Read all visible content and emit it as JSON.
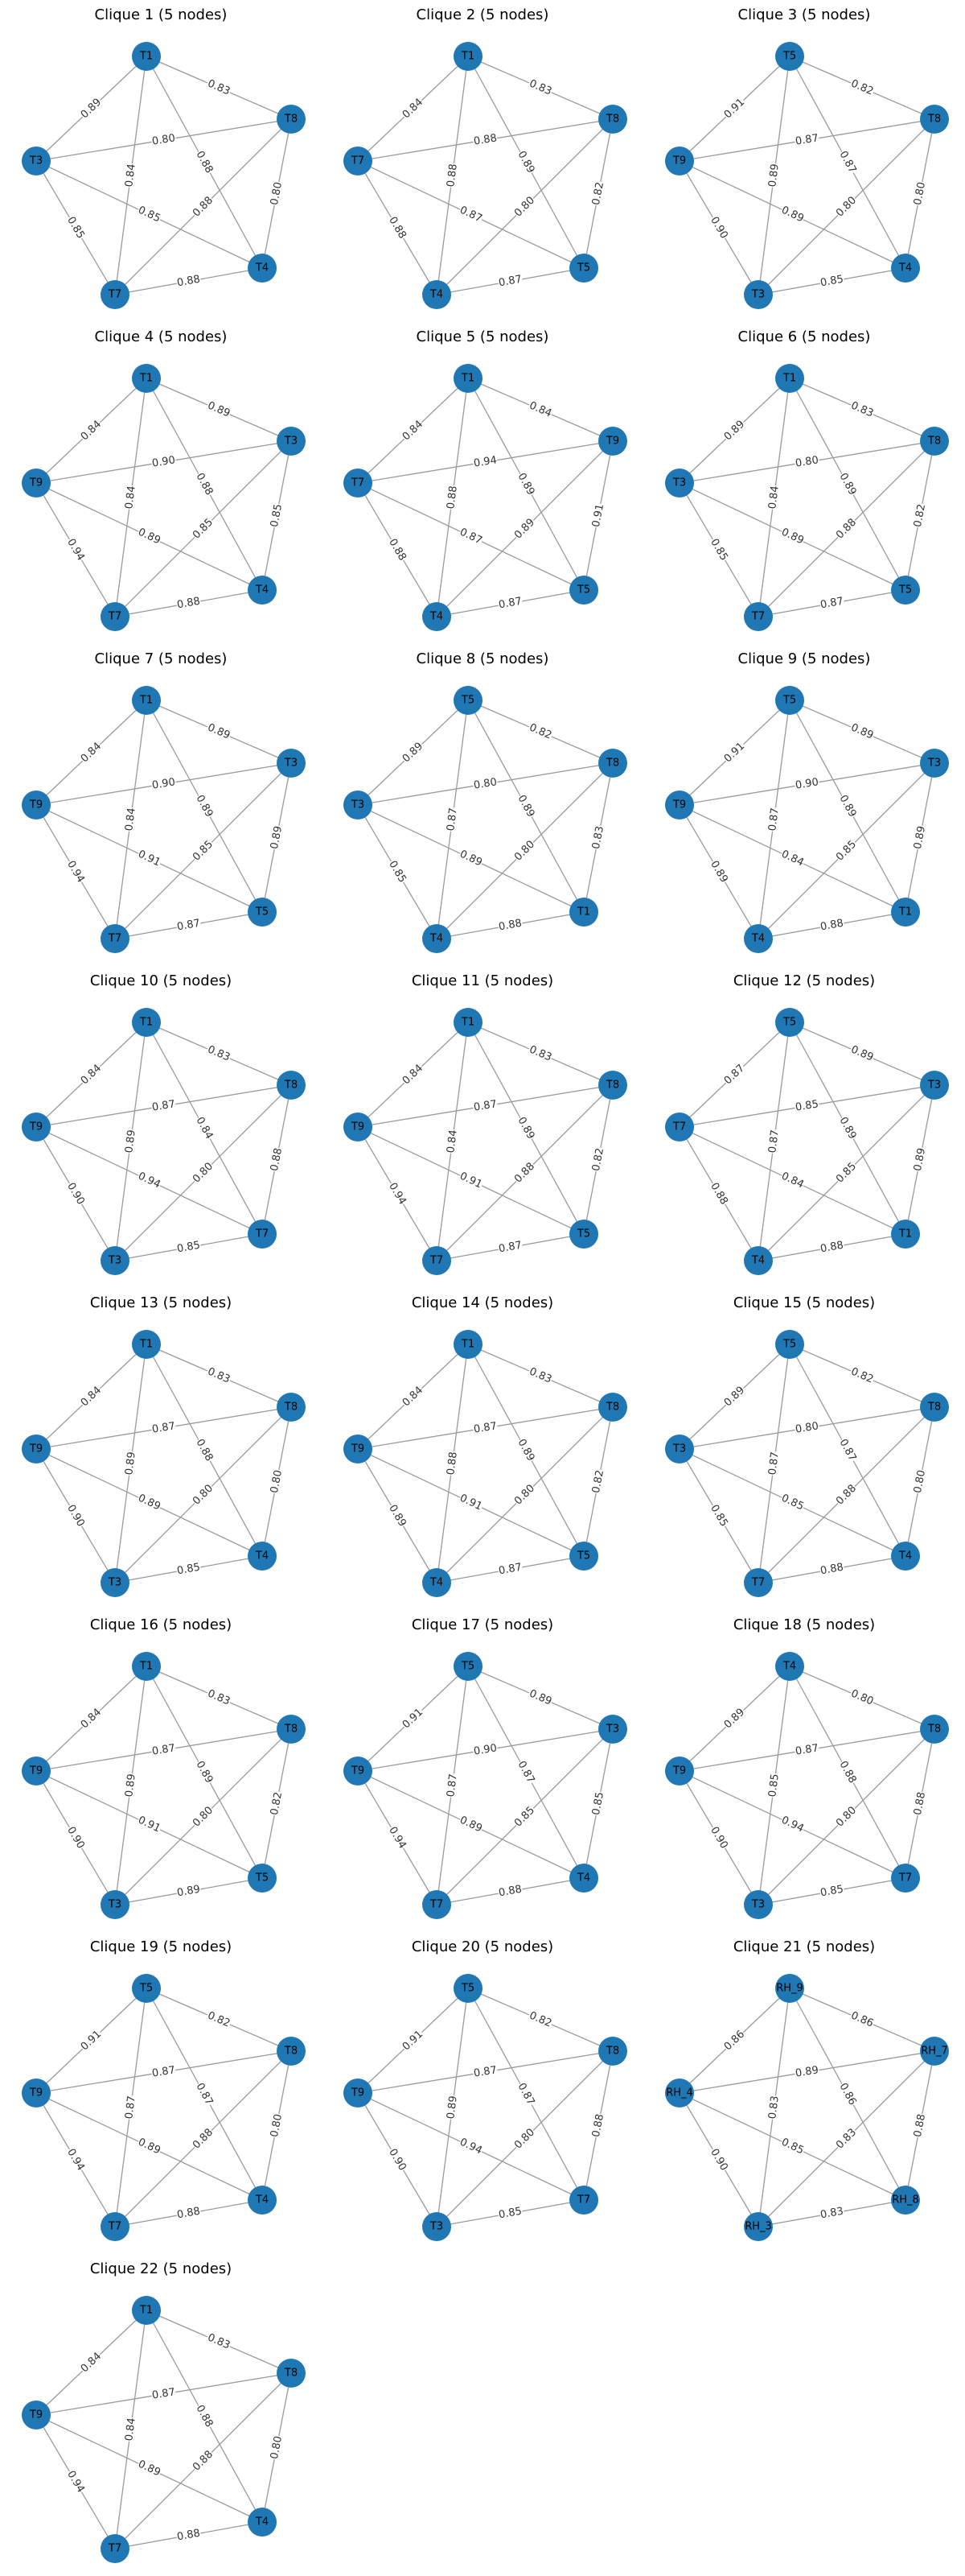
{
  "cliques": [
    {
      "title": "Clique 1 (5 nodes)",
      "nodes": [
        "T1",
        "T8",
        "T4",
        "T7",
        "T3"
      ],
      "edges": [
        [
          "T1",
          "T8",
          "0.83"
        ],
        [
          "T1",
          "T4",
          "0.88"
        ],
        [
          "T1",
          "T7",
          "0.84"
        ],
        [
          "T1",
          "T3",
          "0.89"
        ],
        [
          "T8",
          "T4",
          "0.80"
        ],
        [
          "T8",
          "T7",
          "0.88"
        ],
        [
          "T8",
          "T3",
          "0.80"
        ],
        [
          "T4",
          "T7",
          "0.88"
        ],
        [
          "T4",
          "T3",
          "0.85"
        ],
        [
          "T7",
          "T3",
          "0.85"
        ]
      ]
    },
    {
      "title": "Clique 2 (5 nodes)",
      "nodes": [
        "T1",
        "T8",
        "T5",
        "T4",
        "T7"
      ],
      "edges": [
        [
          "T1",
          "T8",
          "0.83"
        ],
        [
          "T1",
          "T5",
          "0.89"
        ],
        [
          "T1",
          "T4",
          "0.88"
        ],
        [
          "T1",
          "T7",
          "0.84"
        ],
        [
          "T8",
          "T5",
          "0.82"
        ],
        [
          "T8",
          "T4",
          "0.80"
        ],
        [
          "T8",
          "T7",
          "0.88"
        ],
        [
          "T5",
          "T4",
          "0.87"
        ],
        [
          "T5",
          "T7",
          "0.87"
        ],
        [
          "T4",
          "T7",
          "0.88"
        ]
      ]
    },
    {
      "title": "Clique 3 (5 nodes)",
      "nodes": [
        "T5",
        "T8",
        "T4",
        "T3",
        "T9"
      ],
      "edges": [
        [
          "T5",
          "T8",
          "0.82"
        ],
        [
          "T5",
          "T4",
          "0.87"
        ],
        [
          "T5",
          "T3",
          "0.89"
        ],
        [
          "T5",
          "T9",
          "0.91"
        ],
        [
          "T8",
          "T4",
          "0.80"
        ],
        [
          "T8",
          "T3",
          "0.80"
        ],
        [
          "T8",
          "T9",
          "0.87"
        ],
        [
          "T4",
          "T3",
          "0.85"
        ],
        [
          "T4",
          "T9",
          "0.89"
        ],
        [
          "T3",
          "T9",
          "0.90"
        ]
      ]
    },
    {
      "title": "Clique 4 (5 nodes)",
      "nodes": [
        "T1",
        "T3",
        "T4",
        "T7",
        "T9"
      ],
      "edges": [
        [
          "T1",
          "T3",
          "0.89"
        ],
        [
          "T1",
          "T4",
          "0.88"
        ],
        [
          "T1",
          "T7",
          "0.84"
        ],
        [
          "T1",
          "T9",
          "0.84"
        ],
        [
          "T3",
          "T4",
          "0.85"
        ],
        [
          "T3",
          "T7",
          "0.85"
        ],
        [
          "T3",
          "T9",
          "0.90"
        ],
        [
          "T4",
          "T7",
          "0.88"
        ],
        [
          "T4",
          "T9",
          "0.89"
        ],
        [
          "T7",
          "T9",
          "0.94"
        ]
      ]
    },
    {
      "title": "Clique 5 (5 nodes)",
      "nodes": [
        "T1",
        "T9",
        "T5",
        "T4",
        "T7"
      ],
      "edges": [
        [
          "T1",
          "T9",
          "0.84"
        ],
        [
          "T1",
          "T5",
          "0.89"
        ],
        [
          "T1",
          "T4",
          "0.88"
        ],
        [
          "T1",
          "T7",
          "0.84"
        ],
        [
          "T9",
          "T5",
          "0.91"
        ],
        [
          "T9",
          "T4",
          "0.89"
        ],
        [
          "T9",
          "T7",
          "0.94"
        ],
        [
          "T5",
          "T4",
          "0.87"
        ],
        [
          "T5",
          "T7",
          "0.87"
        ],
        [
          "T4",
          "T7",
          "0.88"
        ]
      ]
    },
    {
      "title": "Clique 6 (5 nodes)",
      "nodes": [
        "T1",
        "T8",
        "T5",
        "T7",
        "T3"
      ],
      "edges": [
        [
          "T1",
          "T8",
          "0.83"
        ],
        [
          "T1",
          "T5",
          "0.89"
        ],
        [
          "T1",
          "T7",
          "0.84"
        ],
        [
          "T1",
          "T3",
          "0.89"
        ],
        [
          "T8",
          "T5",
          "0.82"
        ],
        [
          "T8",
          "T7",
          "0.88"
        ],
        [
          "T8",
          "T3",
          "0.80"
        ],
        [
          "T5",
          "T7",
          "0.87"
        ],
        [
          "T5",
          "T3",
          "0.89"
        ],
        [
          "T7",
          "T3",
          "0.85"
        ]
      ]
    },
    {
      "title": "Clique 7 (5 nodes)",
      "nodes": [
        "T1",
        "T3",
        "T5",
        "T7",
        "T9"
      ],
      "edges": [
        [
          "T1",
          "T3",
          "0.89"
        ],
        [
          "T1",
          "T5",
          "0.89"
        ],
        [
          "T1",
          "T7",
          "0.84"
        ],
        [
          "T1",
          "T9",
          "0.84"
        ],
        [
          "T3",
          "T5",
          "0.89"
        ],
        [
          "T3",
          "T7",
          "0.85"
        ],
        [
          "T3",
          "T9",
          "0.90"
        ],
        [
          "T5",
          "T7",
          "0.87"
        ],
        [
          "T5",
          "T9",
          "0.91"
        ],
        [
          "T7",
          "T9",
          "0.94"
        ]
      ]
    },
    {
      "title": "Clique 8 (5 nodes)",
      "nodes": [
        "T5",
        "T8",
        "T1",
        "T4",
        "T3"
      ],
      "edges": [
        [
          "T5",
          "T8",
          "0.82"
        ],
        [
          "T5",
          "T1",
          "0.89"
        ],
        [
          "T5",
          "T4",
          "0.87"
        ],
        [
          "T5",
          "T3",
          "0.89"
        ],
        [
          "T8",
          "T1",
          "0.83"
        ],
        [
          "T8",
          "T4",
          "0.80"
        ],
        [
          "T8",
          "T3",
          "0.80"
        ],
        [
          "T1",
          "T4",
          "0.88"
        ],
        [
          "T1",
          "T3",
          "0.89"
        ],
        [
          "T4",
          "T3",
          "0.85"
        ]
      ]
    },
    {
      "title": "Clique 9 (5 nodes)",
      "nodes": [
        "T5",
        "T3",
        "T1",
        "T4",
        "T9"
      ],
      "edges": [
        [
          "T5",
          "T3",
          "0.89"
        ],
        [
          "T5",
          "T1",
          "0.89"
        ],
        [
          "T5",
          "T4",
          "0.87"
        ],
        [
          "T5",
          "T9",
          "0.91"
        ],
        [
          "T3",
          "T1",
          "0.89"
        ],
        [
          "T3",
          "T4",
          "0.85"
        ],
        [
          "T3",
          "T9",
          "0.90"
        ],
        [
          "T1",
          "T4",
          "0.88"
        ],
        [
          "T1",
          "T9",
          "0.84"
        ],
        [
          "T4",
          "T9",
          "0.89"
        ]
      ]
    },
    {
      "title": "Clique 10 (5 nodes)",
      "nodes": [
        "T1",
        "T8",
        "T7",
        "T3",
        "T9"
      ],
      "edges": [
        [
          "T1",
          "T8",
          "0.83"
        ],
        [
          "T1",
          "T7",
          "0.84"
        ],
        [
          "T1",
          "T3",
          "0.89"
        ],
        [
          "T1",
          "T9",
          "0.84"
        ],
        [
          "T8",
          "T7",
          "0.88"
        ],
        [
          "T8",
          "T3",
          "0.80"
        ],
        [
          "T8",
          "T9",
          "0.87"
        ],
        [
          "T7",
          "T3",
          "0.85"
        ],
        [
          "T7",
          "T9",
          "0.94"
        ],
        [
          "T3",
          "T9",
          "0.90"
        ]
      ]
    },
    {
      "title": "Clique 11 (5 nodes)",
      "nodes": [
        "T1",
        "T8",
        "T5",
        "T7",
        "T9"
      ],
      "edges": [
        [
          "T1",
          "T8",
          "0.83"
        ],
        [
          "T1",
          "T5",
          "0.89"
        ],
        [
          "T1",
          "T7",
          "0.84"
        ],
        [
          "T1",
          "T9",
          "0.84"
        ],
        [
          "T8",
          "T5",
          "0.82"
        ],
        [
          "T8",
          "T7",
          "0.88"
        ],
        [
          "T8",
          "T9",
          "0.87"
        ],
        [
          "T5",
          "T7",
          "0.87"
        ],
        [
          "T5",
          "T9",
          "0.91"
        ],
        [
          "T7",
          "T9",
          "0.94"
        ]
      ]
    },
    {
      "title": "Clique 12 (5 nodes)",
      "nodes": [
        "T5",
        "T3",
        "T1",
        "T4",
        "T7"
      ],
      "edges": [
        [
          "T5",
          "T3",
          "0.89"
        ],
        [
          "T5",
          "T1",
          "0.89"
        ],
        [
          "T5",
          "T4",
          "0.87"
        ],
        [
          "T5",
          "T7",
          "0.87"
        ],
        [
          "T3",
          "T1",
          "0.89"
        ],
        [
          "T3",
          "T4",
          "0.85"
        ],
        [
          "T3",
          "T7",
          "0.85"
        ],
        [
          "T1",
          "T4",
          "0.88"
        ],
        [
          "T1",
          "T7",
          "0.84"
        ],
        [
          "T4",
          "T7",
          "0.88"
        ]
      ]
    },
    {
      "title": "Clique 13 (5 nodes)",
      "nodes": [
        "T1",
        "T8",
        "T4",
        "T3",
        "T9"
      ],
      "edges": [
        [
          "T1",
          "T8",
          "0.83"
        ],
        [
          "T1",
          "T4",
          "0.88"
        ],
        [
          "T1",
          "T3",
          "0.89"
        ],
        [
          "T1",
          "T9",
          "0.84"
        ],
        [
          "T8",
          "T4",
          "0.80"
        ],
        [
          "T8",
          "T3",
          "0.80"
        ],
        [
          "T8",
          "T9",
          "0.87"
        ],
        [
          "T4",
          "T3",
          "0.85"
        ],
        [
          "T4",
          "T9",
          "0.89"
        ],
        [
          "T3",
          "T9",
          "0.90"
        ]
      ]
    },
    {
      "title": "Clique 14 (5 nodes)",
      "nodes": [
        "T1",
        "T8",
        "T5",
        "T4",
        "T9"
      ],
      "edges": [
        [
          "T1",
          "T8",
          "0.83"
        ],
        [
          "T1",
          "T5",
          "0.89"
        ],
        [
          "T1",
          "T4",
          "0.88"
        ],
        [
          "T1",
          "T9",
          "0.84"
        ],
        [
          "T8",
          "T5",
          "0.82"
        ],
        [
          "T8",
          "T4",
          "0.80"
        ],
        [
          "T8",
          "T9",
          "0.87"
        ],
        [
          "T5",
          "T4",
          "0.87"
        ],
        [
          "T5",
          "T9",
          "0.91"
        ],
        [
          "T4",
          "T9",
          "0.89"
        ]
      ]
    },
    {
      "title": "Clique 15 (5 nodes)",
      "nodes": [
        "T5",
        "T8",
        "T4",
        "T7",
        "T3"
      ],
      "edges": [
        [
          "T5",
          "T8",
          "0.82"
        ],
        [
          "T5",
          "T4",
          "0.87"
        ],
        [
          "T5",
          "T7",
          "0.87"
        ],
        [
          "T5",
          "T3",
          "0.89"
        ],
        [
          "T8",
          "T4",
          "0.80"
        ],
        [
          "T8",
          "T7",
          "0.88"
        ],
        [
          "T8",
          "T3",
          "0.80"
        ],
        [
          "T4",
          "T7",
          "0.88"
        ],
        [
          "T4",
          "T3",
          "0.85"
        ],
        [
          "T7",
          "T3",
          "0.85"
        ]
      ]
    },
    {
      "title": "Clique 16 (5 nodes)",
      "nodes": [
        "T1",
        "T8",
        "T5",
        "T3",
        "T9"
      ],
      "edges": [
        [
          "T1",
          "T8",
          "0.83"
        ],
        [
          "T1",
          "T5",
          "0.89"
        ],
        [
          "T1",
          "T3",
          "0.89"
        ],
        [
          "T1",
          "T9",
          "0.84"
        ],
        [
          "T8",
          "T5",
          "0.82"
        ],
        [
          "T8",
          "T3",
          "0.80"
        ],
        [
          "T8",
          "T9",
          "0.87"
        ],
        [
          "T5",
          "T3",
          "0.89"
        ],
        [
          "T5",
          "T9",
          "0.91"
        ],
        [
          "T3",
          "T9",
          "0.90"
        ]
      ]
    },
    {
      "title": "Clique 17 (5 nodes)",
      "nodes": [
        "T5",
        "T3",
        "T4",
        "T7",
        "T9"
      ],
      "edges": [
        [
          "T5",
          "T3",
          "0.89"
        ],
        [
          "T5",
          "T4",
          "0.87"
        ],
        [
          "T5",
          "T7",
          "0.87"
        ],
        [
          "T5",
          "T9",
          "0.91"
        ],
        [
          "T3",
          "T4",
          "0.85"
        ],
        [
          "T3",
          "T7",
          "0.85"
        ],
        [
          "T3",
          "T9",
          "0.90"
        ],
        [
          "T4",
          "T7",
          "0.88"
        ],
        [
          "T4",
          "T9",
          "0.89"
        ],
        [
          "T7",
          "T9",
          "0.94"
        ]
      ]
    },
    {
      "title": "Clique 18 (5 nodes)",
      "nodes": [
        "T4",
        "T8",
        "T7",
        "T3",
        "T9"
      ],
      "edges": [
        [
          "T4",
          "T8",
          "0.80"
        ],
        [
          "T4",
          "T7",
          "0.88"
        ],
        [
          "T4",
          "T3",
          "0.85"
        ],
        [
          "T4",
          "T9",
          "0.89"
        ],
        [
          "T8",
          "T7",
          "0.88"
        ],
        [
          "T8",
          "T3",
          "0.80"
        ],
        [
          "T8",
          "T9",
          "0.87"
        ],
        [
          "T7",
          "T3",
          "0.85"
        ],
        [
          "T7",
          "T9",
          "0.94"
        ],
        [
          "T3",
          "T9",
          "0.90"
        ]
      ]
    },
    {
      "title": "Clique 19 (5 nodes)",
      "nodes": [
        "T5",
        "T8",
        "T4",
        "T7",
        "T9"
      ],
      "edges": [
        [
          "T5",
          "T8",
          "0.82"
        ],
        [
          "T5",
          "T4",
          "0.87"
        ],
        [
          "T5",
          "T7",
          "0.87"
        ],
        [
          "T5",
          "T9",
          "0.91"
        ],
        [
          "T8",
          "T4",
          "0.80"
        ],
        [
          "T8",
          "T7",
          "0.88"
        ],
        [
          "T8",
          "T9",
          "0.87"
        ],
        [
          "T4",
          "T7",
          "0.88"
        ],
        [
          "T4",
          "T9",
          "0.89"
        ],
        [
          "T7",
          "T9",
          "0.94"
        ]
      ]
    },
    {
      "title": "Clique 20 (5 nodes)",
      "nodes": [
        "T5",
        "T8",
        "T7",
        "T3",
        "T9"
      ],
      "edges": [
        [
          "T5",
          "T8",
          "0.82"
        ],
        [
          "T5",
          "T7",
          "0.87"
        ],
        [
          "T5",
          "T3",
          "0.89"
        ],
        [
          "T5",
          "T9",
          "0.91"
        ],
        [
          "T8",
          "T7",
          "0.88"
        ],
        [
          "T8",
          "T3",
          "0.80"
        ],
        [
          "T8",
          "T9",
          "0.87"
        ],
        [
          "T7",
          "T3",
          "0.85"
        ],
        [
          "T7",
          "T9",
          "0.94"
        ],
        [
          "T3",
          "T9",
          "0.90"
        ]
      ]
    },
    {
      "title": "Clique 21 (5 nodes)",
      "nodes": [
        "RH_9",
        "RH_7",
        "RH_8",
        "RH_3",
        "RH_4"
      ],
      "edges": [
        [
          "RH_9",
          "RH_7",
          "0.86"
        ],
        [
          "RH_9",
          "RH_8",
          "0.86"
        ],
        [
          "RH_9",
          "RH_3",
          "0.83"
        ],
        [
          "RH_9",
          "RH_4",
          "0.86"
        ],
        [
          "RH_7",
          "RH_8",
          "0.88"
        ],
        [
          "RH_7",
          "RH_3",
          "0.83"
        ],
        [
          "RH_7",
          "RH_4",
          "0.89"
        ],
        [
          "RH_8",
          "RH_3",
          "0.83"
        ],
        [
          "RH_8",
          "RH_4",
          "0.85"
        ],
        [
          "RH_3",
          "RH_4",
          "0.90"
        ]
      ]
    },
    {
      "title": "Clique 22 (5 nodes)",
      "nodes": [
        "T1",
        "T8",
        "T4",
        "T7",
        "T9"
      ],
      "edges": [
        [
          "T1",
          "T8",
          "0.83"
        ],
        [
          "T1",
          "T4",
          "0.88"
        ],
        [
          "T1",
          "T7",
          "0.84"
        ],
        [
          "T1",
          "T9",
          "0.84"
        ],
        [
          "T8",
          "T4",
          "0.80"
        ],
        [
          "T8",
          "T7",
          "0.88"
        ],
        [
          "T8",
          "T9",
          "0.87"
        ],
        [
          "T4",
          "T7",
          "0.88"
        ],
        [
          "T4",
          "T9",
          "0.89"
        ],
        [
          "T7",
          "T9",
          "0.94"
        ]
      ]
    }
  ],
  "colors": {
    "node": "#1f77b4",
    "edge": "#9a9a9a"
  }
}
